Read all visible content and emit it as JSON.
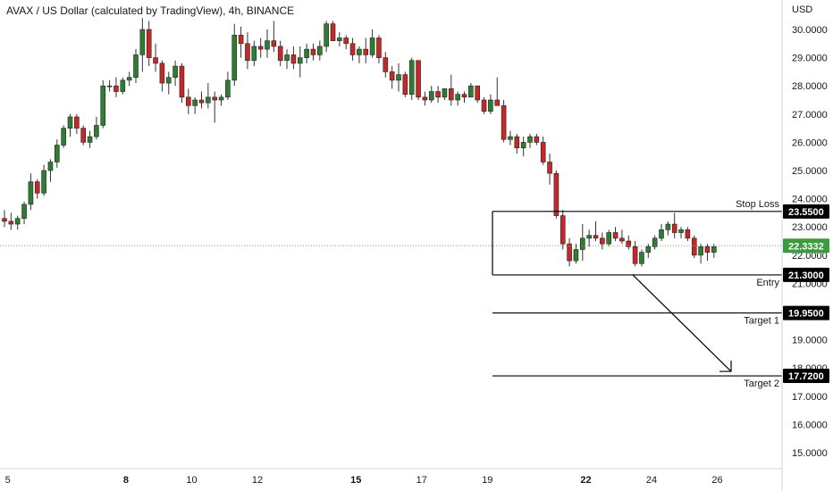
{
  "header": {
    "title": "AVAX / US Dollar (calculated by TradingView), 4h, BINANCE",
    "currency": "USD"
  },
  "colors": {
    "up": "#2e7d32",
    "down": "#c62828",
    "current_badge": "#3b9b3f",
    "level_badge": "#000000",
    "level_line": "#000000",
    "current_line": "#7ab07d"
  },
  "chart_data": {
    "type": "candlestick",
    "symbol": "AVAX / US Dollar",
    "interval": "4h",
    "exchange": "BINANCE",
    "ylim": [
      14.7,
      31.4
    ],
    "xlim": [
      0,
      101
    ],
    "y_ticks": [
      "15.0000",
      "16.0000",
      "17.0000",
      "18.0000",
      "19.0000",
      "21.0000",
      "22.0000",
      "23.0000",
      "24.0000",
      "25.0000",
      "26.0000",
      "27.0000",
      "28.0000",
      "29.0000",
      "30.0000"
    ],
    "x_ticks": [
      {
        "label": "5",
        "x": 0.5,
        "bold": false
      },
      {
        "label": "8",
        "x": 18.5,
        "bold": true
      },
      {
        "label": "10",
        "x": 28.5,
        "bold": false
      },
      {
        "label": "12",
        "x": 38.5,
        "bold": false
      },
      {
        "label": "15",
        "x": 53.5,
        "bold": true
      },
      {
        "label": "17",
        "x": 63.5,
        "bold": false
      },
      {
        "label": "19",
        "x": 73.5,
        "bold": false
      },
      {
        "label": "22",
        "x": 88.5,
        "bold": true
      },
      {
        "label": "24",
        "x": 98.5,
        "bold": false
      },
      {
        "label": "26",
        "x": 108.5,
        "bold": false
      }
    ],
    "current_price": "22.3332",
    "candles": [
      [
        23.3,
        23.6,
        23.0,
        23.2
      ],
      [
        23.2,
        23.5,
        22.9,
        23.1
      ],
      [
        23.1,
        23.4,
        22.9,
        23.3
      ],
      [
        23.3,
        23.9,
        23.1,
        23.8
      ],
      [
        23.8,
        24.9,
        23.6,
        24.6
      ],
      [
        24.6,
        24.7,
        24.0,
        24.2
      ],
      [
        24.2,
        25.2,
        24.1,
        25.0
      ],
      [
        25.0,
        25.4,
        24.6,
        25.3
      ],
      [
        25.3,
        26.1,
        25.1,
        25.9
      ],
      [
        25.9,
        26.6,
        25.8,
        26.5
      ],
      [
        26.5,
        27.0,
        26.2,
        26.9
      ],
      [
        26.9,
        27.0,
        26.3,
        26.5
      ],
      [
        26.5,
        26.6,
        25.9,
        26.0
      ],
      [
        26.0,
        26.4,
        25.8,
        26.2
      ],
      [
        26.2,
        26.9,
        26.1,
        26.6
      ],
      [
        26.6,
        28.2,
        26.5,
        28.0
      ],
      [
        28.0,
        28.2,
        27.8,
        28.0
      ],
      [
        28.0,
        28.3,
        27.6,
        27.8
      ],
      [
        27.8,
        28.3,
        27.7,
        28.2
      ],
      [
        28.2,
        28.5,
        28.0,
        28.3
      ],
      [
        28.3,
        29.3,
        28.1,
        29.1
      ],
      [
        29.1,
        30.4,
        28.5,
        30.0
      ],
      [
        30.0,
        30.3,
        28.7,
        29.0
      ],
      [
        29.0,
        29.5,
        28.5,
        28.8
      ],
      [
        28.8,
        28.9,
        27.8,
        28.1
      ],
      [
        28.1,
        28.5,
        27.7,
        28.3
      ],
      [
        28.3,
        28.9,
        28.0,
        28.7
      ],
      [
        28.7,
        28.8,
        27.4,
        27.6
      ],
      [
        27.6,
        27.9,
        27.0,
        27.3
      ],
      [
        27.3,
        27.6,
        27.0,
        27.5
      ],
      [
        27.5,
        27.8,
        27.2,
        27.4
      ],
      [
        27.4,
        28.1,
        27.2,
        27.6
      ],
      [
        27.6,
        27.8,
        26.7,
        27.5
      ],
      [
        27.5,
        27.7,
        27.3,
        27.6
      ],
      [
        27.6,
        28.5,
        27.5,
        28.2
      ],
      [
        28.2,
        30.2,
        28.0,
        29.8
      ],
      [
        29.8,
        30.1,
        29.0,
        29.5
      ],
      [
        29.5,
        29.9,
        28.6,
        28.9
      ],
      [
        28.9,
        29.6,
        28.7,
        29.4
      ],
      [
        29.4,
        29.7,
        29.0,
        29.3
      ],
      [
        29.3,
        30.0,
        29.0,
        29.6
      ],
      [
        29.6,
        30.3,
        29.2,
        29.4
      ],
      [
        29.4,
        29.6,
        28.7,
        28.9
      ],
      [
        28.9,
        29.3,
        28.6,
        29.1
      ],
      [
        29.1,
        29.4,
        28.6,
        28.8
      ],
      [
        28.8,
        29.4,
        28.3,
        29.0
      ],
      [
        29.0,
        29.5,
        28.8,
        29.3
      ],
      [
        29.3,
        29.5,
        28.9,
        29.1
      ],
      [
        29.1,
        29.6,
        28.9,
        29.4
      ],
      [
        29.4,
        30.3,
        29.2,
        30.2
      ],
      [
        30.2,
        30.3,
        29.6,
        29.6
      ],
      [
        29.6,
        29.9,
        29.4,
        29.7
      ],
      [
        29.7,
        29.8,
        29.3,
        29.5
      ],
      [
        29.5,
        29.7,
        28.9,
        29.1
      ],
      [
        29.1,
        29.4,
        28.8,
        29.3
      ],
      [
        29.3,
        29.7,
        28.8,
        29.1
      ],
      [
        29.1,
        30.0,
        29.0,
        29.7
      ],
      [
        29.7,
        29.8,
        28.8,
        29.0
      ],
      [
        29.0,
        29.2,
        28.3,
        28.5
      ],
      [
        28.5,
        28.7,
        27.9,
        28.2
      ],
      [
        28.2,
        28.8,
        27.8,
        28.4
      ],
      [
        28.4,
        28.5,
        27.6,
        27.7
      ],
      [
        27.7,
        29.0,
        27.5,
        28.9
      ],
      [
        28.9,
        28.9,
        27.5,
        27.6
      ],
      [
        27.6,
        27.8,
        27.3,
        27.5
      ],
      [
        27.5,
        28.0,
        27.4,
        27.8
      ],
      [
        27.8,
        28.0,
        27.4,
        27.6
      ],
      [
        27.6,
        27.9,
        27.5,
        27.9
      ],
      [
        27.9,
        28.4,
        27.3,
        27.5
      ],
      [
        27.5,
        27.8,
        27.3,
        27.7
      ],
      [
        27.7,
        27.8,
        27.4,
        27.6
      ],
      [
        27.6,
        28.1,
        27.6,
        28.0
      ],
      [
        28.0,
        28.0,
        27.4,
        27.5
      ],
      [
        27.5,
        27.6,
        27.0,
        27.1
      ],
      [
        27.1,
        27.7,
        27.0,
        27.5
      ],
      [
        27.5,
        28.3,
        27.3,
        27.3
      ],
      [
        27.3,
        27.5,
        26.0,
        26.1
      ],
      [
        26.1,
        26.4,
        25.9,
        26.2
      ],
      [
        26.2,
        26.3,
        25.6,
        25.8
      ],
      [
        25.8,
        26.2,
        25.5,
        26.0
      ],
      [
        26.0,
        26.3,
        25.8,
        26.2
      ],
      [
        26.2,
        26.3,
        25.9,
        26.0
      ],
      [
        26.0,
        26.2,
        25.2,
        25.3
      ],
      [
        25.3,
        25.6,
        24.5,
        24.9
      ],
      [
        24.9,
        25.0,
        23.3,
        23.4
      ],
      [
        23.4,
        23.6,
        22.2,
        22.4
      ],
      [
        22.4,
        22.6,
        21.6,
        21.8
      ],
      [
        21.8,
        22.4,
        21.7,
        22.2
      ],
      [
        22.2,
        23.1,
        21.8,
        22.6
      ],
      [
        22.6,
        22.9,
        22.3,
        22.7
      ]
    ],
    "levels": [
      {
        "name": "Stop Loss",
        "value": "23.5500"
      },
      {
        "name": "Entry",
        "value": "21.3000"
      },
      {
        "name": "Target 1",
        "value": "19.9500"
      },
      {
        "name": "Target 2",
        "value": "17.7200"
      }
    ]
  },
  "extra_candles": [
    [
      22.7,
      23.2,
      22.5,
      22.6
    ],
    [
      22.6,
      22.8,
      22.2,
      22.4
    ],
    [
      22.4,
      22.9,
      22.3,
      22.8
    ],
    [
      22.8,
      23.0,
      22.5,
      22.6
    ],
    [
      22.6,
      22.9,
      22.4,
      22.5
    ],
    [
      22.5,
      22.7,
      22.2,
      22.3
    ],
    [
      22.3,
      22.5,
      21.6,
      21.7
    ],
    [
      21.7,
      22.2,
      21.6,
      22.1
    ],
    [
      22.1,
      22.4,
      21.9,
      22.3
    ],
    [
      22.3,
      22.7,
      22.2,
      22.6
    ],
    [
      22.6,
      23.1,
      22.5,
      22.9
    ],
    [
      22.9,
      23.2,
      22.7,
      23.1
    ],
    [
      23.1,
      23.5,
      22.6,
      22.8
    ],
    [
      22.8,
      23.0,
      22.6,
      22.9
    ],
    [
      22.9,
      23.0,
      22.5,
      22.6
    ],
    [
      22.6,
      22.7,
      21.9,
      22.0
    ],
    [
      22.0,
      22.4,
      21.7,
      22.3
    ],
    [
      22.3,
      22.4,
      21.8,
      22.1
    ],
    [
      22.1,
      22.4,
      21.9,
      22.3
    ]
  ]
}
